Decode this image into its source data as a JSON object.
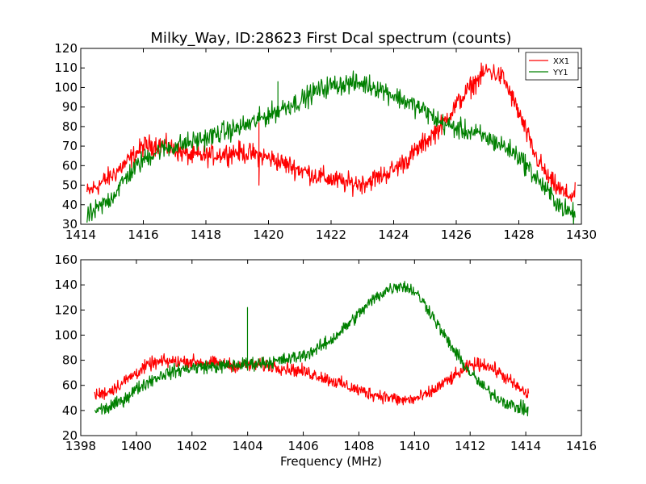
{
  "chart_data": [
    {
      "type": "line",
      "title": "Milky_Way, ID:28623 First Dcal spectrum (counts)",
      "xlabel": "",
      "ylabel": "",
      "xlim": [
        1414,
        1430
      ],
      "ylim": [
        30,
        120
      ],
      "xticks": [
        "1414",
        "1416",
        "1418",
        "1420",
        "1422",
        "1424",
        "1426",
        "1428",
        "1430"
      ],
      "yticks": [
        "30",
        "40",
        "50",
        "60",
        "70",
        "80",
        "90",
        "100",
        "110",
        "120"
      ],
      "grid": false,
      "legend": "top-right",
      "series": [
        {
          "name": "XX1",
          "color": "#ff0000",
          "x": [
            1414.2,
            1415,
            1415.5,
            1416,
            1416.5,
            1417,
            1417.5,
            1418,
            1418.5,
            1419,
            1419.5,
            1420,
            1420.5,
            1421,
            1421.5,
            1422,
            1422.5,
            1423,
            1423.5,
            1424,
            1424.5,
            1425,
            1425.5,
            1426,
            1426.5,
            1427,
            1427.5,
            1428,
            1428.5,
            1429,
            1429.5,
            1429.8
          ],
          "values": [
            46,
            55,
            62,
            70,
            71,
            68,
            65,
            65,
            66,
            67,
            66,
            64,
            61,
            58,
            55,
            53,
            51,
            51,
            54,
            58,
            64,
            72,
            80,
            91,
            101,
            109,
            105,
            87,
            66,
            52,
            45,
            45
          ]
        },
        {
          "name": "YY1",
          "color": "#008000",
          "x": [
            1414.2,
            1414.5,
            1415,
            1415.5,
            1416,
            1416.5,
            1417,
            1417.5,
            1418,
            1418.5,
            1419,
            1419.5,
            1420,
            1420.5,
            1421,
            1421.5,
            1422,
            1422.5,
            1423,
            1423.5,
            1424,
            1424.5,
            1425,
            1425.5,
            1426,
            1426.5,
            1427,
            1427.5,
            1428,
            1428.5,
            1429,
            1429.5,
            1429.8
          ],
          "values": [
            34,
            37,
            44,
            55,
            63,
            68,
            70,
            72,
            74,
            77,
            79,
            82,
            86,
            90,
            93,
            98,
            101,
            102,
            102,
            100,
            96,
            92,
            88,
            82,
            79,
            77,
            74,
            70,
            65,
            55,
            45,
            37,
            35
          ]
        }
      ],
      "spikes": [
        {
          "series": "XX1",
          "x": 1419.7,
          "values": [
            82,
            50
          ]
        },
        {
          "series": "YY1",
          "x": 1420.3,
          "values": [
            103,
            85
          ]
        }
      ]
    },
    {
      "type": "line",
      "title": "",
      "xlabel": "Frequency (MHz)",
      "ylabel": "",
      "xlim": [
        1398,
        1416
      ],
      "ylim": [
        20,
        160
      ],
      "xticks": [
        "1398",
        "1400",
        "1402",
        "1404",
        "1406",
        "1408",
        "1410",
        "1412",
        "1414",
        "1416"
      ],
      "yticks": [
        "20",
        "40",
        "60",
        "80",
        "100",
        "120",
        "140",
        "160"
      ],
      "grid": false,
      "series": [
        {
          "name": "XX1",
          "color": "#ff0000",
          "x": [
            1398.5,
            1399,
            1399.5,
            1400,
            1400.5,
            1401,
            1401.5,
            1402,
            1402.5,
            1403,
            1403.5,
            1404,
            1404.5,
            1405,
            1405.5,
            1406,
            1406.5,
            1407,
            1407.5,
            1408,
            1408.5,
            1409,
            1409.5,
            1410,
            1410.5,
            1411,
            1411.5,
            1412,
            1412.5,
            1413,
            1413.5,
            1414.1
          ],
          "values": [
            52,
            55,
            62,
            70,
            77,
            79,
            79,
            79,
            78,
            77,
            76,
            76,
            76,
            75,
            73,
            71,
            68,
            64,
            60,
            56,
            53,
            51,
            48,
            49,
            53,
            61,
            68,
            76,
            77,
            71,
            62,
            52
          ]
        },
        {
          "name": "YY1",
          "color": "#008000",
          "x": [
            1398.5,
            1399,
            1399.5,
            1400,
            1400.5,
            1401,
            1401.5,
            1402,
            1402.5,
            1403,
            1403.5,
            1404,
            1404.5,
            1405,
            1405.5,
            1406,
            1406.5,
            1407,
            1407.5,
            1408,
            1408.5,
            1409,
            1409.5,
            1410,
            1410.5,
            1411,
            1411.5,
            1412,
            1412.5,
            1413,
            1413.5,
            1414.1
          ],
          "values": [
            40,
            42,
            48,
            57,
            64,
            69,
            72,
            74,
            75,
            75,
            76,
            77,
            78,
            79,
            81,
            84,
            89,
            96,
            106,
            117,
            128,
            136,
            140,
            135,
            121,
            102,
            85,
            70,
            58,
            50,
            44,
            40
          ]
        }
      ],
      "spikes": [
        {
          "series": "YY1",
          "x": 1404.0,
          "values": [
            122,
            72
          ]
        }
      ]
    }
  ]
}
